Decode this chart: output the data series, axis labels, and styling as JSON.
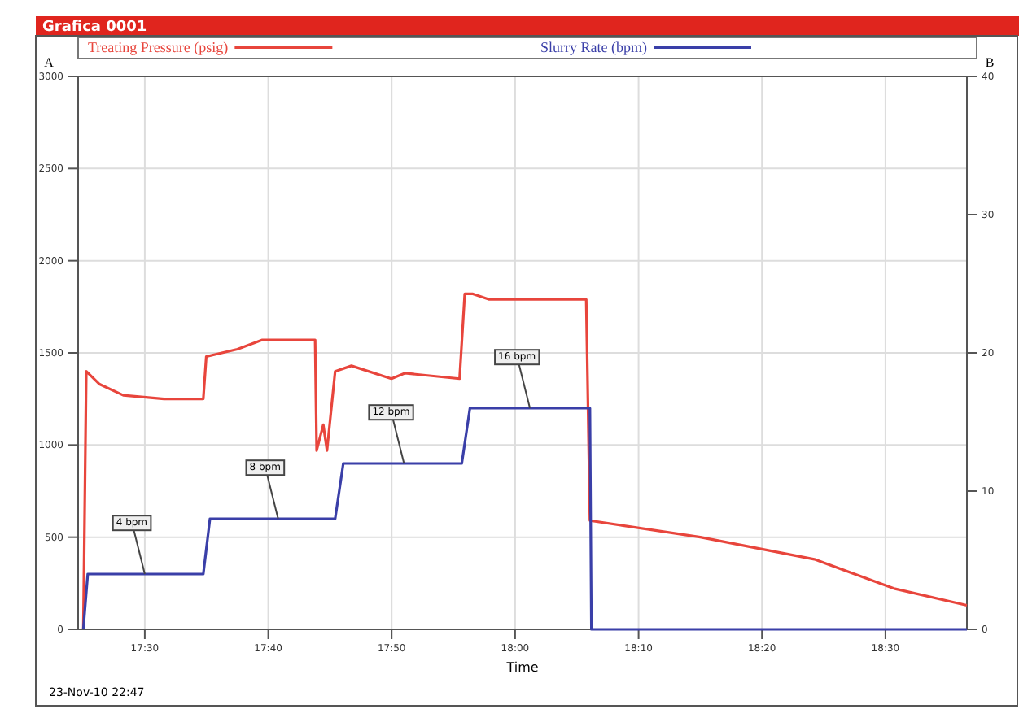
{
  "chart_data": {
    "type": "line",
    "title": "Grafica 0001",
    "xlabel": "Time",
    "ylabel": "A",
    "y2label": "B",
    "xlim": [
      17.41,
      18.61
    ],
    "xticks": [
      {
        "value": 17.5,
        "label": "17:30"
      },
      {
        "value": 17.6667,
        "label": "17:40"
      },
      {
        "value": 17.8333,
        "label": "17:50"
      },
      {
        "value": 18.0,
        "label": "18:00"
      },
      {
        "value": 18.1667,
        "label": "18:10"
      },
      {
        "value": 18.3333,
        "label": "18:20"
      },
      {
        "value": 18.5,
        "label": "18:30"
      }
    ],
    "ylim": [
      0,
      3000
    ],
    "yticks": [
      0,
      500,
      1000,
      1500,
      2000,
      2500,
      3000
    ],
    "y2lim": [
      0,
      40
    ],
    "y2ticks": [
      0,
      10,
      20,
      30,
      40
    ],
    "grid": true,
    "legend": "top",
    "marker": "none",
    "line_style": "solid",
    "series": [
      {
        "name": "Treating Pressure (psig)",
        "color": "#e8453c",
        "x": [
          17.417,
          17.421,
          17.439,
          17.471,
          17.526,
          17.579,
          17.583,
          17.625,
          17.658,
          17.73,
          17.732,
          17.741,
          17.746,
          17.757,
          17.779,
          17.833,
          17.851,
          17.925,
          17.932,
          17.943,
          17.965,
          18.096,
          18.101,
          18.25,
          18.404,
          18.513,
          18.61
        ],
        "values": [
          0,
          1400,
          1330,
          1270,
          1250,
          1250,
          1480,
          1520,
          1570,
          1570,
          970,
          1110,
          970,
          1400,
          1430,
          1360,
          1390,
          1360,
          1820,
          1820,
          1790,
          1790,
          590,
          500,
          380,
          220,
          130
        ]
      },
      {
        "name": "Slurry Rate (bpm)",
        "color": "#3a3fa8",
        "axis": "y2",
        "x": [
          17.417,
          17.423,
          17.579,
          17.588,
          17.757,
          17.768,
          17.928,
          17.939,
          18.101,
          18.103,
          18.61
        ],
        "values": [
          0,
          4,
          4,
          8,
          8,
          12,
          12,
          16,
          16,
          0,
          0
        ]
      }
    ],
    "annotations": [
      {
        "text": "4 bpm",
        "x": 17.5,
        "y": 300
      },
      {
        "text": "8 bpm",
        "x": 17.68,
        "y": 600
      },
      {
        "text": "12 bpm",
        "x": 17.85,
        "y": 900
      },
      {
        "text": "16 bpm",
        "x": 18.02,
        "y": 1200
      },
      "23-Nov-10 22:47"
    ]
  }
}
